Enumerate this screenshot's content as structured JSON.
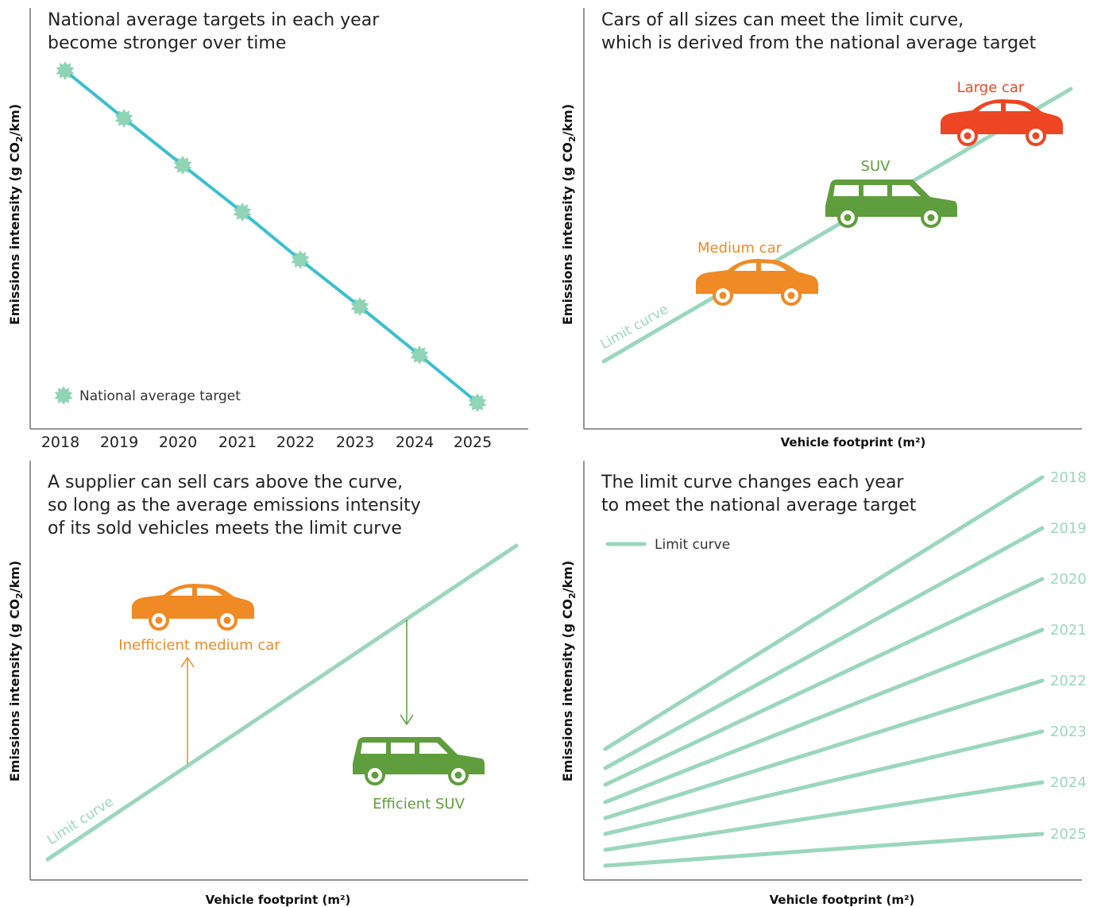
{
  "panels": [
    {
      "title": [
        "National average targets in each year",
        "become stronger over time"
      ],
      "y_label": {
        "text": "Emissions intensity (g CO",
        "sub": "2",
        "end": "/km)"
      },
      "legend": "National average target",
      "years": [
        2018,
        2019,
        2020,
        2021,
        2022,
        2023,
        2024,
        2025
      ]
    },
    {
      "title": [
        "Cars of all sizes can meet the limit curve,",
        "which is derived from the national average target"
      ],
      "y_label": {
        "text": "Emissions intensity (g CO",
        "sub": "2",
        "end": "/km)"
      },
      "x_label": "Vehicle footprint (m²)",
      "limit_label": "Limit curve",
      "cars": [
        "Medium car",
        "SUV",
        "Large car"
      ]
    },
    {
      "title": [
        "A supplier can sell cars above the curve,",
        "so long as the average emissions intensity",
        "of its sold vehicles meets the limit curve"
      ],
      "y_label": {
        "text": "Emissions intensity (g CO",
        "sub": "2",
        "end": "/km)"
      },
      "x_label": "Vehicle footprint (m²)",
      "limit_label": "Limit curve",
      "cars": [
        "Inefficient medium car",
        "Efficient SUV"
      ]
    },
    {
      "title": [
        "The limit curve changes each year",
        "to meet the national average target"
      ],
      "y_label": {
        "text": "Emissions intensity (g CO",
        "sub": "2",
        "end": "/km)"
      },
      "x_label": "Vehicle footprint (m²)",
      "legend": "Limit curve",
      "years": [
        2018,
        2019,
        2020,
        2021,
        2022,
        2023,
        2024,
        2025
      ]
    }
  ]
}
